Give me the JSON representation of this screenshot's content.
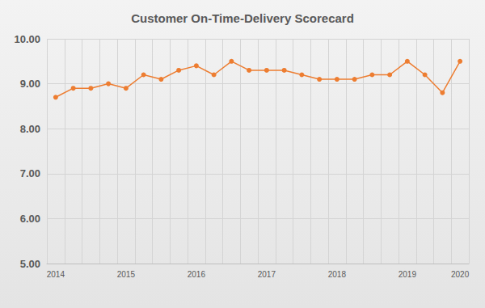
{
  "chart_data": {
    "type": "line",
    "title": "Customer On-Time-Delivery Scorecard",
    "categories": [
      "2014",
      null,
      null,
      null,
      "2015",
      null,
      null,
      null,
      "2016",
      null,
      null,
      null,
      "2017",
      null,
      null,
      null,
      "2018",
      null,
      null,
      null,
      "2019",
      null,
      null,
      "2020"
    ],
    "values": [
      8.7,
      8.9,
      8.9,
      9.0,
      8.9,
      9.2,
      9.1,
      9.3,
      9.4,
      9.2,
      9.5,
      9.3,
      9.3,
      9.3,
      9.2,
      9.1,
      9.1,
      9.1,
      9.2,
      9.2,
      9.5,
      9.2,
      8.8,
      9.5
    ],
    "color": "#ed7d31",
    "marker": "circle",
    "ylim": [
      5,
      10
    ],
    "yticks": [
      {
        "value": 5,
        "label": "5.00"
      },
      {
        "value": 6,
        "label": "6.00"
      },
      {
        "value": 7,
        "label": "7.00"
      },
      {
        "value": 8,
        "label": "8.00"
      },
      {
        "value": 9,
        "label": "9.00"
      },
      {
        "value": 10,
        "label": "10.00"
      }
    ],
    "grid": true
  }
}
